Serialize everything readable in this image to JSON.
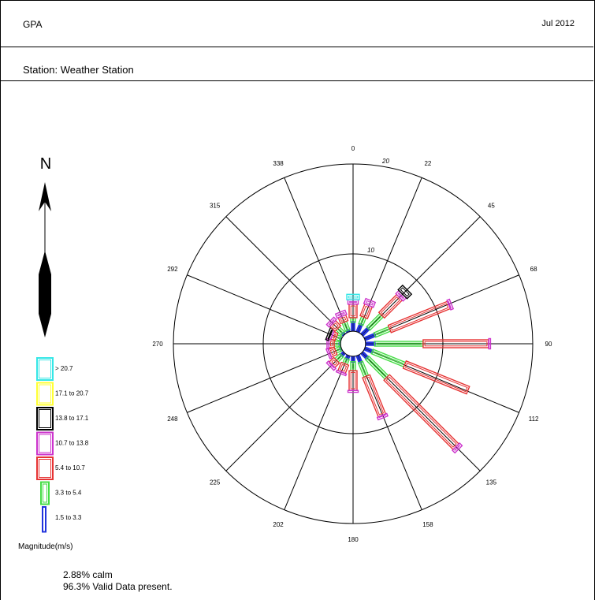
{
  "header": {
    "title": "GPA",
    "date": "Jul 2012",
    "station": "Station: Weather Station"
  },
  "compass": {
    "letter": "N"
  },
  "legend": {
    "title": "Magnitude(m/s)",
    "items": [
      {
        "label": "> 20.7",
        "color": "#33e6e6"
      },
      {
        "label": "17.1 to 20.7",
        "color": "#ffff33"
      },
      {
        "label": "13.8 to 17.1",
        "color": "#000000"
      },
      {
        "label": "10.7 to 13.8",
        "color": "#cc33cc"
      },
      {
        "label": "5.4 to 10.7",
        "color": "#e63333"
      },
      {
        "label": "3.3 to 5.4",
        "color": "#44dd44"
      },
      {
        "label": "1.5 to 3.3",
        "color": "#2233dd"
      }
    ]
  },
  "footer": {
    "calm": "2.88% calm",
    "valid": "96.3% Valid Data present."
  },
  "chart_data": {
    "type": "wind-rose",
    "direction_labels": [
      "0",
      "22",
      "45",
      "68",
      "90",
      "112",
      "135",
      "158",
      "180",
      "202",
      "225",
      "248",
      "270",
      "292",
      "315",
      "338"
    ],
    "ring_labels": [
      "10",
      "20"
    ],
    "calm_radius_percent": 1.3,
    "bins": [
      "1.5 to 3.3",
      "3.3 to 5.4",
      "5.4 to 10.7",
      "10.7 to 13.8",
      "13.8 to 17.1",
      "17.1 to 20.7",
      "> 20.7"
    ],
    "series": [
      {
        "direction": 0,
        "cumulative_percent": [
          2.4,
          2.9,
          4.4,
          4.9,
          4.9,
          4.9,
          5.5
        ]
      },
      {
        "direction": 22,
        "cumulative_percent": [
          2.3,
          3.2,
          4.6,
          5.2
        ]
      },
      {
        "direction": 45,
        "cumulative_percent": [
          2.4,
          4.5,
          7.3,
          7.8,
          8.5
        ]
      },
      {
        "direction": 68,
        "cumulative_percent": [
          2.6,
          4.4,
          11.5,
          11.8
        ]
      },
      {
        "direction": 90,
        "cumulative_percent": [
          2.4,
          7.8,
          15.1,
          15.3
        ]
      },
      {
        "direction": 112,
        "cumulative_percent": [
          2.3,
          6.2,
          13.8
        ]
      },
      {
        "direction": 135,
        "cumulative_percent": [
          2.2,
          5.3,
          16.2,
          16.6
        ]
      },
      {
        "direction": 158,
        "cumulative_percent": [
          2.2,
          3.9,
          8.6,
          8.9
        ]
      },
      {
        "direction": 180,
        "cumulative_percent": [
          2.0,
          3.0,
          5.2,
          5.4
        ]
      },
      {
        "direction": 202,
        "cumulative_percent": [
          1.8,
          2.4,
          3.4,
          3.6
        ]
      },
      {
        "direction": 225,
        "cumulative_percent": [
          1.8,
          2.6,
          3.3,
          3.6
        ]
      },
      {
        "direction": 248,
        "cumulative_percent": [
          1.5,
          2.1,
          2.8,
          3.0
        ]
      },
      {
        "direction": 270,
        "cumulative_percent": [
          1.5,
          2.1,
          2.7,
          2.9
        ]
      },
      {
        "direction": 292,
        "cumulative_percent": [
          1.5,
          2.0,
          2.5,
          2.7,
          3.0
        ]
      },
      {
        "direction": 315,
        "cumulative_percent": [
          1.6,
          2.4,
          3.2,
          3.6
        ]
      },
      {
        "direction": 338,
        "cumulative_percent": [
          1.6,
          2.6,
          3.3,
          3.8
        ]
      }
    ]
  }
}
